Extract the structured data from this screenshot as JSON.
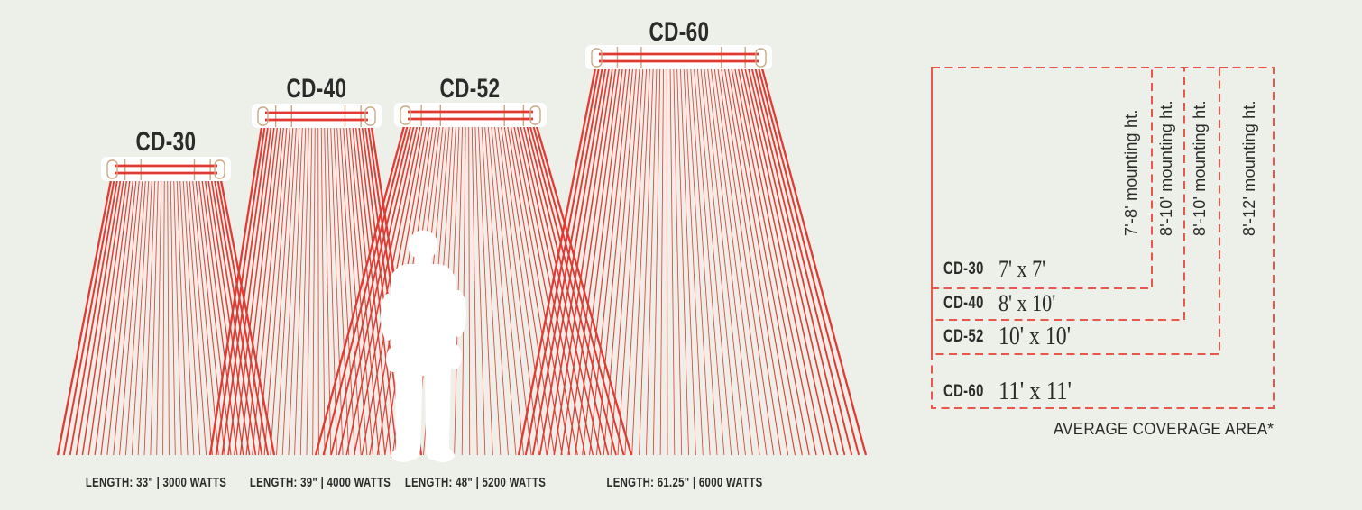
{
  "models": [
    {
      "name": "CD-30",
      "length_label": "LENGTH: 33\" | 3000 WATTS",
      "coverage": "7' x 7'",
      "mounting": "7'-8' mounting ht."
    },
    {
      "name": "CD-40",
      "length_label": "LENGTH: 39\" | 4000 WATTS",
      "coverage": "8' x 10'",
      "mounting": "8'-10' mounting ht."
    },
    {
      "name": "CD-52",
      "length_label": "LENGTH: 48\" | 5200 WATTS",
      "coverage": "10' x 10'",
      "mounting": "8'-10' mounting ht."
    },
    {
      "name": "CD-60",
      "length_label": "LENGTH: 61.25\" | 6000 WATTS",
      "coverage": "11' x 11'",
      "mounting": "8'-12' mounting ht."
    }
  ],
  "caption": "AVERAGE COVERAGE AREA*",
  "colors": {
    "background": "#edefe9",
    "ray_red": "#e23a33",
    "dash_red": "#e9564b",
    "fixture_tan": "#c9aa85",
    "text_dark": "#2b2c2a",
    "silhouette_white": "#ffffff"
  }
}
